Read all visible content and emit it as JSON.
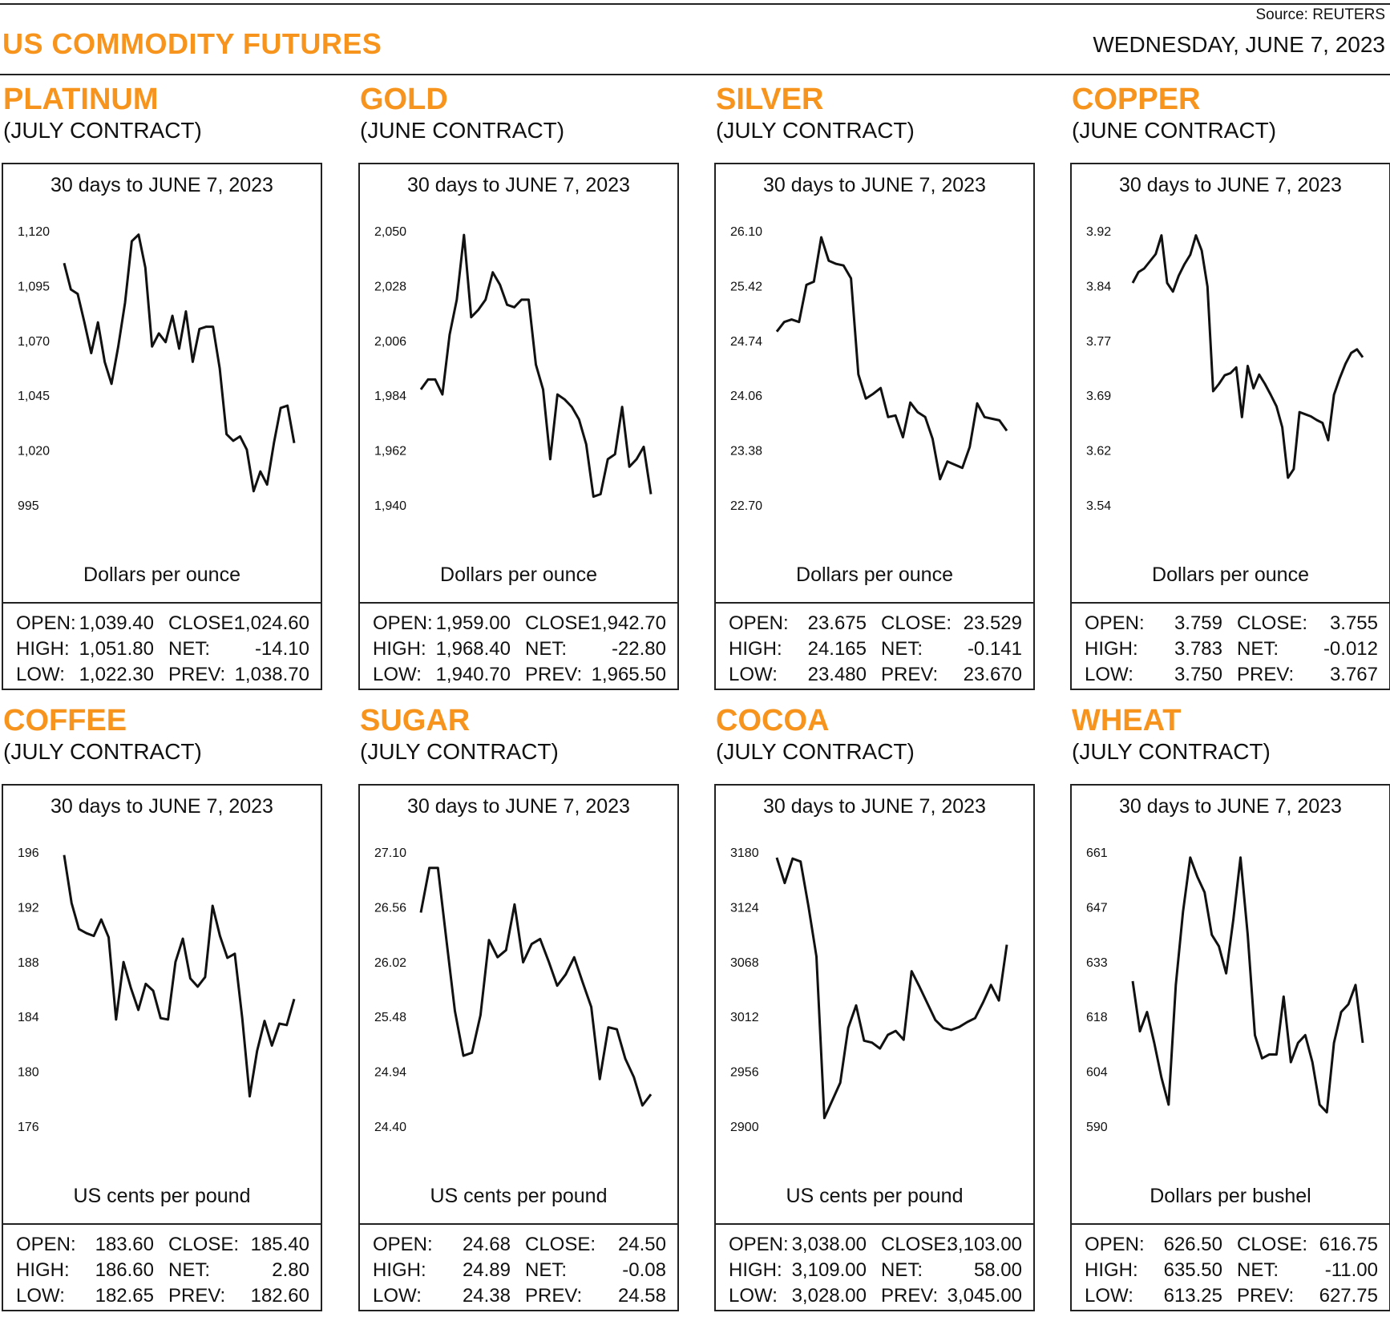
{
  "header": {
    "title": "US COMMODITY FUTURES",
    "source": "Source: REUTERS",
    "date": "WEDNESDAY, JUNE 7, 2023"
  },
  "colors": {
    "accent": "#F7941D",
    "line": "#111111"
  },
  "chart_data": [
    {
      "type": "line",
      "name": "PLATINUM",
      "contract": "(JULY CONTRACT)",
      "title": "30 days to JUNE 7, 2023",
      "ylabel": "Dollars per ounce",
      "yticks": [
        "1,120",
        "1,095",
        "1,070",
        "1,045",
        "1,020",
        "995"
      ],
      "ylim": [
        995,
        1120
      ],
      "values": [
        1106,
        1094,
        1092,
        1079,
        1065,
        1079,
        1061,
        1051,
        1068,
        1088,
        1116,
        1119,
        1104,
        1068,
        1074,
        1070,
        1082,
        1067,
        1084,
        1061,
        1076,
        1077,
        1077,
        1058,
        1028,
        1025,
        1027,
        1021,
        1002,
        1011,
        1005,
        1024,
        1040,
        1041,
        1024
      ],
      "stats": {
        "open_label": "OPEN:",
        "open": "1,039.40",
        "close_label": "CLOSE:",
        "close": "1,024.60",
        "high_label": "HIGH:",
        "high": "1,051.80",
        "net_label": "NET:",
        "net": "-14.10",
        "low_label": "LOW:",
        "low": "1,022.30",
        "prev_label": "PREV:",
        "prev": "1,038.70"
      }
    },
    {
      "type": "line",
      "name": "GOLD",
      "contract": "(JUNE CONTRACT)",
      "title": "30 days to JUNE 7, 2023",
      "ylabel": "Dollars per ounce",
      "yticks": [
        "2,050",
        "2,028",
        "2,006",
        "1,984",
        "1,962",
        "1,940"
      ],
      "ylim": [
        1940,
        2050
      ],
      "values": [
        1987,
        1991,
        1991,
        1985,
        2009,
        2023,
        2049,
        2016,
        2019,
        2023,
        2034,
        2029,
        2021,
        2020,
        2023,
        2023,
        1997,
        1987,
        1959,
        1985,
        1983,
        1980,
        1975,
        1965,
        1944,
        1945,
        1959,
        1961,
        1980,
        1956,
        1959,
        1964,
        1945
      ],
      "stats": {
        "open_label": "OPEN:",
        "open": "1,959.00",
        "close_label": "CLOSE:",
        "close": "1,942.70",
        "high_label": "HIGH:",
        "high": "1,968.40",
        "net_label": "NET:",
        "net": "-22.80",
        "low_label": "LOW:",
        "low": "1,940.70",
        "prev_label": "PREV:",
        "prev": "1,965.50"
      }
    },
    {
      "type": "line",
      "name": "SILVER",
      "contract": "(JULY CONTRACT)",
      "title": "30 days to JUNE 7, 2023",
      "ylabel": "Dollars per ounce",
      "yticks": [
        "26.10",
        "25.42",
        "24.74",
        "24.06",
        "23.38",
        "22.70"
      ],
      "ylim": [
        22.7,
        26.1
      ],
      "values": [
        24.87,
        24.99,
        25.02,
        24.99,
        25.45,
        25.49,
        26.04,
        25.75,
        25.71,
        25.69,
        25.53,
        24.34,
        24.04,
        24.1,
        24.17,
        23.81,
        23.83,
        23.56,
        23.99,
        23.87,
        23.81,
        23.54,
        23.04,
        23.26,
        23.22,
        23.18,
        23.44,
        23.98,
        23.81,
        23.79,
        23.77,
        23.64
      ],
      "stats": {
        "open_label": "OPEN:",
        "open": "23.675",
        "close_label": "CLOSE:",
        "close": "23.529",
        "high_label": "HIGH:",
        "high": "24.165",
        "net_label": "NET:",
        "net": "-0.141",
        "low_label": "LOW:",
        "low": "23.480",
        "prev_label": "PREV:",
        "prev": "23.670"
      }
    },
    {
      "type": "line",
      "name": "COPPER",
      "contract": "(JUNE CONTRACT)",
      "title": "30 days to JUNE 7, 2023",
      "ylabel": "Dollars per ounce",
      "yticks": [
        "3.92",
        "3.84",
        "3.77",
        "3.69",
        "3.62",
        "3.54"
      ],
      "ylim": [
        3.54,
        3.92
      ],
      "values": [
        3.85,
        3.865,
        3.87,
        3.88,
        3.89,
        3.916,
        3.85,
        3.838,
        3.86,
        3.876,
        3.889,
        3.916,
        3.895,
        3.845,
        3.7,
        3.71,
        3.722,
        3.725,
        3.733,
        3.664,
        3.735,
        3.704,
        3.723,
        3.71,
        3.695,
        3.679,
        3.65,
        3.58,
        3.592,
        3.671,
        3.668,
        3.665,
        3.66,
        3.656,
        3.632,
        3.695,
        3.718,
        3.738,
        3.753,
        3.758,
        3.747
      ],
      "stats": {
        "open_label": "OPEN:",
        "open": "3.759",
        "close_label": "CLOSE:",
        "close": "3.755",
        "high_label": "HIGH:",
        "high": "3.783",
        "net_label": "NET:",
        "net": "-0.012",
        "low_label": "LOW:",
        "low": "3.750",
        "prev_label": "PREV:",
        "prev": "3.767"
      }
    },
    {
      "type": "line",
      "name": "COFFEE",
      "contract": "(JULY CONTRACT)",
      "title": "30 days to JUNE 7, 2023",
      "ylabel": "US cents per pound",
      "yticks": [
        "196",
        "192",
        "188",
        "184",
        "180",
        "176"
      ],
      "ylim": [
        176,
        196
      ],
      "values": [
        195.9,
        192.4,
        190.5,
        190.2,
        190.0,
        191.2,
        189.9,
        183.9,
        188.1,
        186.2,
        184.6,
        186.5,
        186.0,
        184.0,
        183.9,
        188.1,
        189.8,
        186.9,
        186.3,
        187.0,
        192.2,
        190.0,
        188.4,
        188.7,
        184.0,
        178.3,
        181.6,
        183.8,
        182.0,
        183.6,
        183.5,
        185.4
      ],
      "stats": {
        "open_label": "OPEN:",
        "open": "183.60",
        "close_label": "CLOSE:",
        "close": "185.40",
        "high_label": "HIGH:",
        "high": "186.60",
        "net_label": "NET:",
        "net": "2.80",
        "low_label": "LOW:",
        "low": "182.65",
        "prev_label": "PREV:",
        "prev": "182.60"
      }
    },
    {
      "type": "line",
      "name": "SUGAR",
      "contract": "(JULY CONTRACT)",
      "title": "30 days to JUNE 7, 2023",
      "ylabel": "US cents per pound",
      "yticks": [
        "27.10",
        "26.56",
        "26.02",
        "25.48",
        "24.94",
        "24.40"
      ],
      "ylim": [
        24.4,
        27.1
      ],
      "values": [
        26.52,
        26.96,
        26.96,
        26.25,
        25.55,
        25.11,
        25.14,
        25.51,
        26.25,
        26.08,
        26.15,
        26.6,
        26.03,
        26.21,
        26.26,
        26.04,
        25.8,
        25.91,
        26.08,
        25.83,
        25.59,
        24.88,
        25.39,
        25.37,
        25.08,
        24.9,
        24.62,
        24.73
      ],
      "stats": {
        "open_label": "OPEN:",
        "open": "24.68",
        "close_label": "CLOSE:",
        "close": "24.50",
        "high_label": "HIGH:",
        "high": "24.89",
        "net_label": "NET:",
        "net": "-0.08",
        "low_label": "LOW:",
        "low": "24.38",
        "prev_label": "PREV:",
        "prev": "24.58"
      }
    },
    {
      "type": "line",
      "name": "COCOA",
      "contract": "(JULY CONTRACT)",
      "title": "30 days to JUNE 7, 2023",
      "ylabel": "US cents per pound",
      "yticks": [
        "3180",
        "3124",
        "3068",
        "3012",
        "2956",
        "2900"
      ],
      "ylim": [
        2900,
        3180
      ],
      "values": [
        3176,
        3150,
        3175,
        3172,
        3126,
        3075,
        2910,
        2928,
        2946,
        3002,
        3025,
        2989,
        2987,
        2981,
        2995,
        2999,
        2990,
        3060,
        3044,
        3027,
        3010,
        3002,
        3000,
        3003,
        3008,
        3012,
        3028,
        3046,
        3030,
        3087
      ],
      "stats": {
        "open_label": "OPEN:",
        "open": "3,038.00",
        "close_label": "CLOSE:",
        "close": "3,103.00",
        "high_label": "HIGH:",
        "high": "3,109.00",
        "net_label": "NET:",
        "net": "58.00",
        "low_label": "LOW:",
        "low": "3,028.00",
        "prev_label": "PREV:",
        "prev": "3,045.00"
      }
    },
    {
      "type": "line",
      "name": "WHEAT",
      "contract": "(JULY CONTRACT)",
      "title": "30 days to JUNE 7, 2023",
      "ylabel": "Dollars per bushel",
      "yticks": [
        "661",
        "647",
        "633",
        "618",
        "604",
        "590"
      ],
      "ylim": [
        590,
        661
      ],
      "values": [
        628,
        615,
        620,
        612,
        603,
        596,
        627,
        646,
        660,
        655,
        651,
        640,
        637,
        630,
        644,
        660,
        640,
        614,
        608,
        609,
        609,
        624,
        607,
        612,
        614,
        607,
        596,
        594,
        612,
        620,
        622,
        627,
        612
      ],
      "stats": {
        "open_label": "OPEN:",
        "open": "626.50",
        "close_label": "CLOSE:",
        "close": "616.75",
        "high_label": "HIGH:",
        "high": "635.50",
        "net_label": "NET:",
        "net": "-11.00",
        "low_label": "LOW:",
        "low": "613.25",
        "prev_label": "PREV:",
        "prev": "627.75"
      }
    }
  ]
}
